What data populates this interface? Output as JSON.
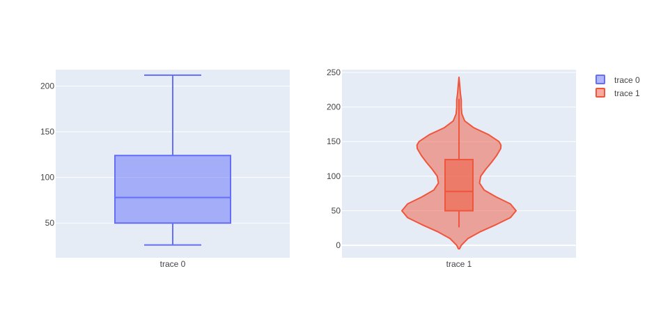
{
  "chart_data": [
    {
      "type": "box",
      "category": "trace 0",
      "legend_name": "trace 0",
      "color": "#636efa",
      "stats": {
        "min": 26,
        "q1": 50,
        "median": 78,
        "q3": 124,
        "max": 212
      },
      "yticks": [
        50,
        100,
        150,
        200
      ],
      "ylim": [
        12,
        218
      ],
      "grid": true
    },
    {
      "type": "violin",
      "category": "trace 1",
      "legend_name": "trace 1",
      "color": "#ef553b",
      "stats": {
        "min": 26,
        "q1": 50,
        "median": 78,
        "q3": 124,
        "max": 212
      },
      "density": [
        {
          "y": -5,
          "w": 0.01
        },
        {
          "y": 0,
          "w": 0.04
        },
        {
          "y": 10,
          "w": 0.16
        },
        {
          "y": 20,
          "w": 0.38
        },
        {
          "y": 30,
          "w": 0.65
        },
        {
          "y": 40,
          "w": 0.9
        },
        {
          "y": 50,
          "w": 1.0
        },
        {
          "y": 60,
          "w": 0.9
        },
        {
          "y": 70,
          "w": 0.65
        },
        {
          "y": 80,
          "w": 0.44
        },
        {
          "y": 90,
          "w": 0.36
        },
        {
          "y": 100,
          "w": 0.38
        },
        {
          "y": 110,
          "w": 0.47
        },
        {
          "y": 120,
          "w": 0.57
        },
        {
          "y": 130,
          "w": 0.66
        },
        {
          "y": 140,
          "w": 0.73
        },
        {
          "y": 145,
          "w": 0.735
        },
        {
          "y": 150,
          "w": 0.7
        },
        {
          "y": 160,
          "w": 0.52
        },
        {
          "y": 170,
          "w": 0.26
        },
        {
          "y": 180,
          "w": 0.1
        },
        {
          "y": 190,
          "w": 0.05
        },
        {
          "y": 200,
          "w": 0.04
        },
        {
          "y": 210,
          "w": 0.04
        },
        {
          "y": 220,
          "w": 0.025
        },
        {
          "y": 230,
          "w": 0.015
        },
        {
          "y": 243,
          "w": 0.0
        }
      ],
      "yticks": [
        0,
        50,
        100,
        150,
        200,
        250
      ],
      "ylim": [
        -18,
        254
      ],
      "grid": true
    }
  ],
  "legend": {
    "placement": "top-right",
    "items": [
      "trace 0",
      "trace 1"
    ]
  }
}
